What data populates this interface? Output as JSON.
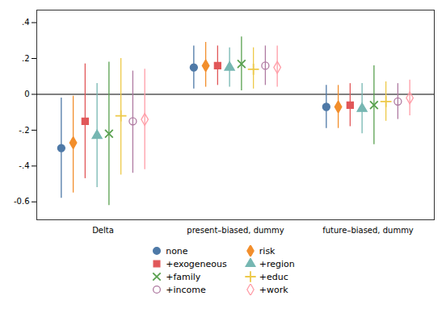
{
  "chart_data": {
    "type": "errorbar",
    "categories": [
      "Delta",
      "present–biased, dummy",
      "future–biased, dummy"
    ],
    "series": [
      {
        "name": "none",
        "marker": "circle",
        "values": [
          -0.3,
          0.15,
          -0.07
        ],
        "ci_low": [
          -0.58,
          0.03,
          -0.19
        ],
        "ci_high": [
          -0.02,
          0.27,
          0.05
        ]
      },
      {
        "name": "risk",
        "marker": "diamond",
        "values": [
          -0.27,
          0.16,
          -0.07
        ],
        "ci_low": [
          -0.55,
          0.04,
          -0.19
        ],
        "ci_high": [
          -0.01,
          0.29,
          0.05
        ]
      },
      {
        "name": "+exogeneous",
        "marker": "square",
        "values": [
          -0.15,
          0.16,
          -0.06
        ],
        "ci_low": [
          -0.47,
          0.05,
          -0.18
        ],
        "ci_high": [
          0.17,
          0.27,
          0.06
        ]
      },
      {
        "name": "+region",
        "marker": "triangle",
        "values": [
          -0.23,
          0.15,
          -0.08
        ],
        "ci_low": [
          -0.52,
          0.04,
          -0.22
        ],
        "ci_high": [
          0.06,
          0.26,
          0.06
        ]
      },
      {
        "name": "+family",
        "marker": "times",
        "values": [
          -0.22,
          0.17,
          -0.06
        ],
        "ci_low": [
          -0.62,
          0.02,
          -0.28
        ],
        "ci_high": [
          0.18,
          0.32,
          0.16
        ]
      },
      {
        "name": "+educ",
        "marker": "plus",
        "values": [
          -0.12,
          0.14,
          -0.04
        ],
        "ci_low": [
          -0.45,
          0.03,
          -0.15
        ],
        "ci_high": [
          0.2,
          0.26,
          0.07
        ]
      },
      {
        "name": "+income",
        "marker": "open-circle",
        "values": [
          -0.15,
          0.16,
          -0.04
        ],
        "ci_low": [
          -0.44,
          0.05,
          -0.14
        ],
        "ci_high": [
          0.13,
          0.27,
          0.06
        ]
      },
      {
        "name": "+work",
        "marker": "open-diamond",
        "values": [
          -0.14,
          0.15,
          -0.02
        ],
        "ci_low": [
          -0.42,
          0.04,
          -0.12
        ],
        "ci_high": [
          0.14,
          0.27,
          0.08
        ]
      }
    ],
    "hlines": [
      0
    ],
    "ylim": [
      -0.7,
      0.47
    ],
    "yticks": [
      -0.6,
      {
        "value": -0.4,
        "label": "-.4"
      },
      {
        "value": -0.2,
        "label": "-.2"
      },
      0,
      {
        "value": 0.2,
        "label": ".2"
      },
      {
        "value": 0.4,
        "label": ".4"
      }
    ],
    "grid": false,
    "legend": "bottom"
  }
}
